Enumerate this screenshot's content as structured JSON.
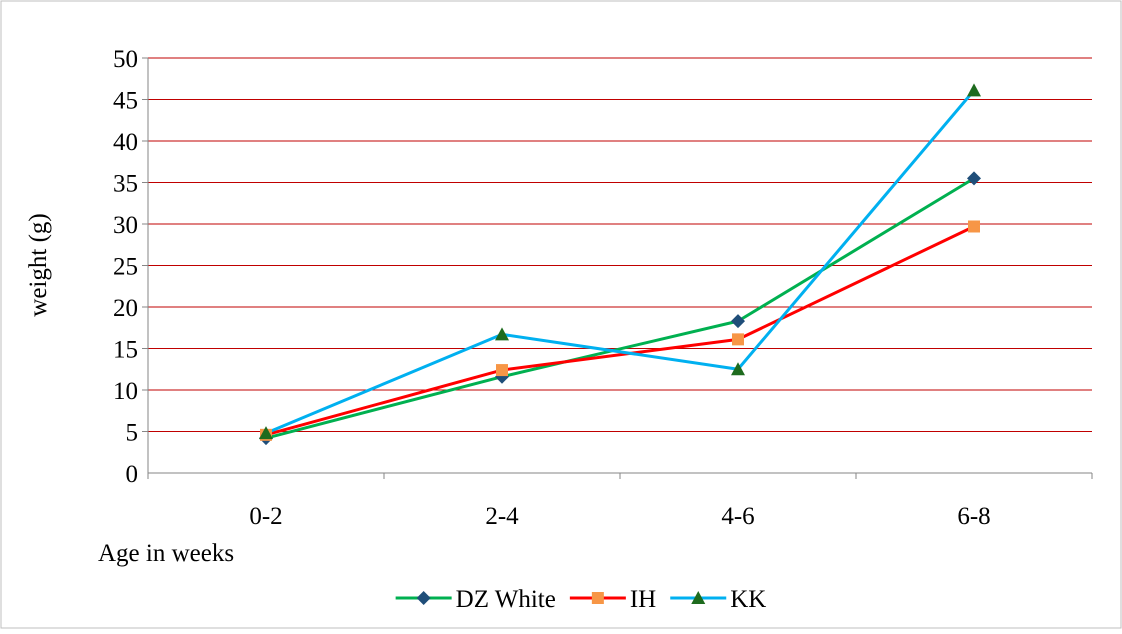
{
  "chart_data": {
    "type": "line",
    "title": "",
    "xlabel": "Age in weeks",
    "ylabel": "weight (g)",
    "categories": [
      "0-2",
      "2-4",
      "4-6",
      "6-8"
    ],
    "ylim": [
      0,
      50
    ],
    "yticks": [
      0,
      5,
      10,
      15,
      20,
      25,
      30,
      35,
      40,
      45,
      50
    ],
    "grid": true,
    "gridline_color": "#c00000",
    "legend_position": "bottom",
    "series": [
      {
        "name": "DZ White",
        "values": [
          4.2,
          11.6,
          18.3,
          35.5
        ],
        "line_color": "#00b050",
        "marker": "diamond",
        "marker_color": "#1f4e79"
      },
      {
        "name": "IH",
        "values": [
          4.6,
          12.4,
          16.1,
          29.7
        ],
        "line_color": "#ff0000",
        "marker": "square",
        "marker_color": "#f79646"
      },
      {
        "name": "KK",
        "values": [
          4.8,
          16.7,
          12.5,
          46.1
        ],
        "line_color": "#00b0f0",
        "marker": "triangle",
        "marker_color": "#1e6b1e"
      }
    ]
  }
}
